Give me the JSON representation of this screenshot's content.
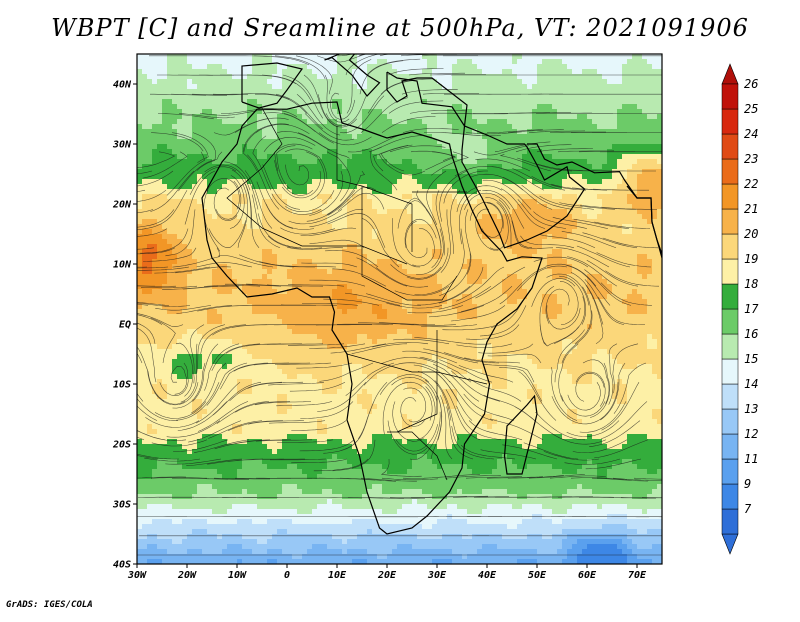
{
  "title": "WBPT [C] and Sreamline at 500hPa, VT: 2021091906",
  "credit": "GrADS: IGES/COLA",
  "map": {
    "lon_range": [
      -30,
      75
    ],
    "lat_range": [
      -40,
      45
    ],
    "lat_ticks": [
      {
        "value": 40,
        "label": "40N"
      },
      {
        "value": 30,
        "label": "30N"
      },
      {
        "value": 20,
        "label": "20N"
      },
      {
        "value": 10,
        "label": "10N"
      },
      {
        "value": 0,
        "label": "EQ"
      },
      {
        "value": -10,
        "label": "10S"
      },
      {
        "value": -20,
        "label": "20S"
      },
      {
        "value": -30,
        "label": "30S"
      },
      {
        "value": -40,
        "label": "40S"
      }
    ],
    "lon_ticks": [
      {
        "value": -30,
        "label": "30W"
      },
      {
        "value": -20,
        "label": "20W"
      },
      {
        "value": -10,
        "label": "10W"
      },
      {
        "value": 0,
        "label": "0"
      },
      {
        "value": 10,
        "label": "10E"
      },
      {
        "value": 20,
        "label": "20E"
      },
      {
        "value": 30,
        "label": "30E"
      },
      {
        "value": 40,
        "label": "40E"
      },
      {
        "value": 50,
        "label": "50E"
      },
      {
        "value": 60,
        "label": "60E"
      },
      {
        "value": 70,
        "label": "70E"
      }
    ]
  },
  "colorbar": {
    "levels": [
      {
        "label": "7",
        "color": "#2f6fd8"
      },
      {
        "label": "9",
        "color": "#3d87e6"
      },
      {
        "label": "11",
        "color": "#5aa0ee"
      },
      {
        "label": "12",
        "color": "#78b4f2"
      },
      {
        "label": "13",
        "color": "#98c8f6"
      },
      {
        "label": "14",
        "color": "#bfdff9"
      },
      {
        "label": "15",
        "color": "#e6f7fb"
      },
      {
        "label": "16",
        "color": "#b8eab0"
      },
      {
        "label": "17",
        "color": "#6ccb68"
      },
      {
        "label": "18",
        "color": "#34ad3c"
      },
      {
        "label": "19",
        "color": "#fdf0a6"
      },
      {
        "label": "20",
        "color": "#fbd77a"
      },
      {
        "label": "21",
        "color": "#f7b24a"
      },
      {
        "label": "22",
        "color": "#f29626"
      },
      {
        "label": "23",
        "color": "#ea6c1a"
      },
      {
        "label": "24",
        "color": "#e04a14"
      },
      {
        "label": "25",
        "color": "#d8280e"
      },
      {
        "label": "26",
        "color": "#c0120a"
      }
    ],
    "low_arrow_color": "#2f6fd8",
    "high_arrow_color": "#b0100a"
  }
}
